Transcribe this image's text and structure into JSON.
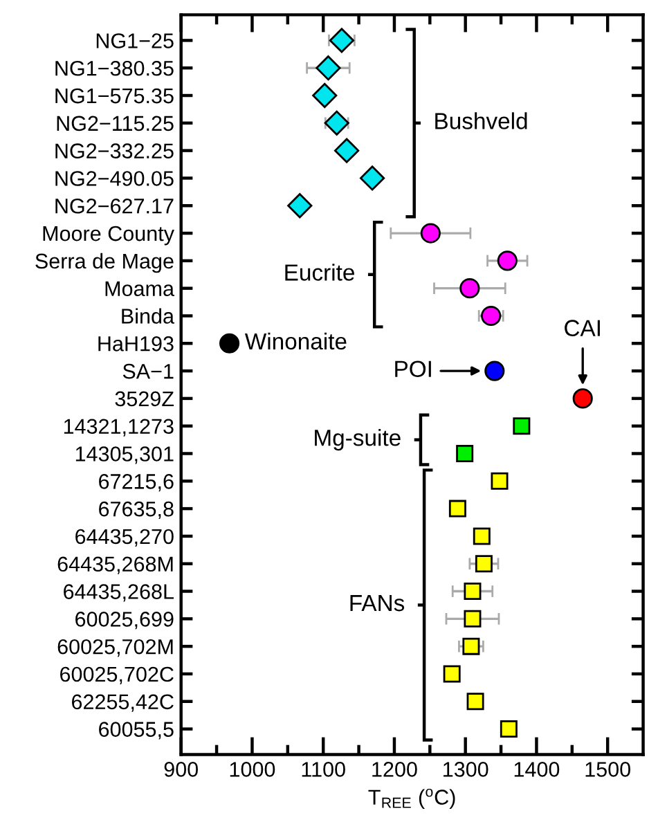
{
  "chart_data": {
    "type": "scatter",
    "orientation": "horizontal",
    "xlabel": "T$_{REE}$ ($^{o}$C)",
    "categories": [
      "NG1−25",
      "NG1−380.35",
      "NG1−575.35",
      "NG2−115.25",
      "NG2−332.25",
      "NG2−490.05",
      "NG2−627.17",
      "Moore County",
      "Serra de Mage",
      "Moama",
      "Binda",
      "HaH193",
      "SA−1",
      "3529Z",
      "14321,1273",
      "14305,301",
      "67215,6",
      "67635,8",
      "64435,270",
      "64435,268M",
      "64435,268L",
      "60025,699",
      "60025,702M",
      "60025,702C",
      "62255,42C",
      "60055,5"
    ],
    "series": [
      {
        "color": "#00e5ee",
        "marker": "diamond",
        "values": [
          1126,
          1107,
          1102,
          1119,
          1133,
          1169,
          1067,
          null,
          null,
          null,
          null,
          null,
          null,
          null,
          null,
          null,
          null,
          null,
          null,
          null,
          null,
          null,
          null,
          null,
          null,
          null
        ],
        "errors": [
          18,
          30,
          null,
          16,
          null,
          null,
          null,
          null,
          null,
          null,
          null,
          null,
          null,
          null,
          null,
          null,
          null,
          null,
          null,
          null,
          null,
          null,
          null,
          null,
          null,
          null
        ]
      },
      {
        "color": "#ff00ff",
        "marker": "circle",
        "values": [
          null,
          null,
          null,
          null,
          null,
          null,
          null,
          1251,
          1359,
          1306,
          1336,
          null,
          null,
          null,
          null,
          null,
          null,
          null,
          null,
          null,
          null,
          null,
          null,
          null,
          null,
          null
        ],
        "errors": [
          null,
          null,
          null,
          null,
          null,
          null,
          null,
          56,
          28,
          50,
          17,
          null,
          null,
          null,
          null,
          null,
          null,
          null,
          null,
          null,
          null,
          null,
          null,
          null,
          null,
          null
        ]
      },
      {
        "color": "#000000",
        "marker": "circle",
        "values": [
          null,
          null,
          null,
          null,
          null,
          null,
          null,
          null,
          null,
          null,
          null,
          968,
          null,
          null,
          null,
          null,
          null,
          null,
          null,
          null,
          null,
          null,
          null,
          null,
          null,
          null
        ]
      },
      {
        "color": "#0000ff",
        "marker": "circle",
        "values": [
          null,
          null,
          null,
          null,
          null,
          null,
          null,
          null,
          null,
          null,
          null,
          null,
          1341,
          null,
          null,
          null,
          null,
          null,
          null,
          null,
          null,
          null,
          null,
          null,
          null,
          null
        ]
      },
      {
        "color": "#ff0000",
        "marker": "circle",
        "values": [
          null,
          null,
          null,
          null,
          null,
          null,
          null,
          null,
          null,
          null,
          null,
          null,
          null,
          1465,
          null,
          null,
          null,
          null,
          null,
          null,
          null,
          null,
          null,
          null,
          null,
          null
        ]
      },
      {
        "color": "#00ee00",
        "marker": "square",
        "values": [
          null,
          null,
          null,
          null,
          null,
          null,
          null,
          null,
          null,
          null,
          null,
          null,
          null,
          null,
          1379,
          1299,
          null,
          null,
          null,
          null,
          null,
          null,
          null,
          null,
          null,
          null
        ]
      },
      {
        "color": "#ffff00",
        "marker": "square",
        "values": [
          null,
          null,
          null,
          null,
          null,
          null,
          null,
          null,
          null,
          null,
          null,
          null,
          null,
          null,
          null,
          null,
          1348,
          1289,
          1323,
          1326,
          1310,
          1310,
          1308,
          1281,
          1314,
          1361
        ],
        "errors": [
          null,
          null,
          null,
          null,
          null,
          null,
          null,
          null,
          null,
          null,
          null,
          null,
          null,
          null,
          null,
          null,
          null,
          null,
          null,
          20,
          28,
          37,
          17,
          null,
          8,
          null
        ]
      }
    ],
    "annotations": [
      "Bushveld",
      "Eucrite",
      "Winonaite",
      "POI",
      "CAI",
      "Mg-suite",
      "FANs"
    ],
    "xlim": [
      900,
      1550
    ],
    "xticks": [
      900,
      {
        "value": 950,
        "label": null
      },
      1000,
      {
        "value": 1050,
        "label": null
      },
      1100,
      {
        "value": 1150,
        "label": null
      },
      1200,
      {
        "value": 1250,
        "label": null
      },
      1300,
      {
        "value": 1350,
        "label": null
      },
      1400,
      {
        "value": 1450,
        "label": null
      },
      1500
    ],
    "grid": false,
    "legend": false
  }
}
